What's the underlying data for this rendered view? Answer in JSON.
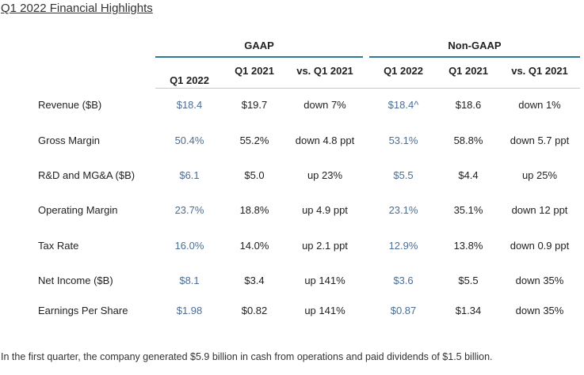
{
  "title": "Q1 2022 Financial Highlights",
  "groups": {
    "gaap": "GAAP",
    "non_gaap": "Non-GAAP"
  },
  "columns": [
    "Q1 2022",
    "Q1 2021",
    "vs. Q1 2021",
    "Q1 2022",
    "Q1 2021",
    "vs. Q1 2021"
  ],
  "rows": [
    {
      "label": "Revenue ($B)",
      "gaap_q1_2022": "$18.4",
      "gaap_q1_2021": "$19.7",
      "gaap_vs": "down 7%",
      "ng_q1_2022": "$18.4^",
      "ng_q1_2021": "$18.6",
      "ng_vs": "down 1%"
    },
    {
      "label": "Gross Margin",
      "gaap_q1_2022": "50.4%",
      "gaap_q1_2021": "55.2%",
      "gaap_vs": "down 4.8 ppt",
      "ng_q1_2022": "53.1%",
      "ng_q1_2021": "58.8%",
      "ng_vs": "down 5.7 ppt"
    },
    {
      "label": "R&D and MG&A ($B)",
      "gaap_q1_2022": "$6.1",
      "gaap_q1_2021": "$5.0",
      "gaap_vs": "up 23%",
      "ng_q1_2022": "$5.5",
      "ng_q1_2021": "$4.4",
      "ng_vs": "up 25%"
    },
    {
      "label": "Operating Margin",
      "gaap_q1_2022": "23.7%",
      "gaap_q1_2021": "18.8%",
      "gaap_vs": "up 4.9 ppt",
      "ng_q1_2022": "23.1%",
      "ng_q1_2021": "35.1%",
      "ng_vs": "down 12 ppt"
    },
    {
      "label": "Tax Rate",
      "gaap_q1_2022": "16.0%",
      "gaap_q1_2021": "14.0%",
      "gaap_vs": "up 2.1 ppt",
      "ng_q1_2022": "12.9%",
      "ng_q1_2021": "13.8%",
      "ng_vs": "down 0.9 ppt"
    },
    {
      "label": "Net Income ($B)",
      "gaap_q1_2022": "$8.1",
      "gaap_q1_2021": "$3.4",
      "gaap_vs": "up 141%",
      "ng_q1_2022": "$3.6",
      "ng_q1_2021": "$5.5",
      "ng_vs": "down 35%"
    },
    {
      "label": "Earnings Per Share",
      "gaap_q1_2022": "$1.98",
      "gaap_q1_2021": "$0.82",
      "gaap_vs": "up 141%",
      "ng_q1_2022": "$0.87",
      "ng_q1_2021": "$1.34",
      "ng_vs": "down 35%"
    }
  ],
  "footer": "In the first quarter, the company generated $5.9 billion in cash from operations and paid dividends of $1.5 billion.",
  "colors": {
    "rule": "#2e7899",
    "highlight": "#4a6e96"
  }
}
